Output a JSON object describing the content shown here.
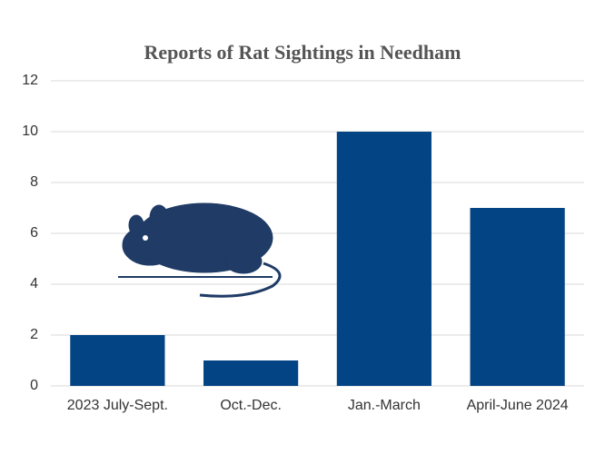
{
  "chart_data": {
    "type": "bar",
    "title": "Reports of Rat Sightings in Needham",
    "categories": [
      "2023 July-Sept.",
      "Oct.-Dec.",
      "Jan.-March",
      "April-June 2024"
    ],
    "values": [
      2,
      1,
      10,
      7
    ],
    "color": "#034484",
    "ylim": [
      0,
      12
    ],
    "yticks": [
      0,
      2,
      4,
      6,
      8,
      10,
      12
    ],
    "grid": true
  }
}
